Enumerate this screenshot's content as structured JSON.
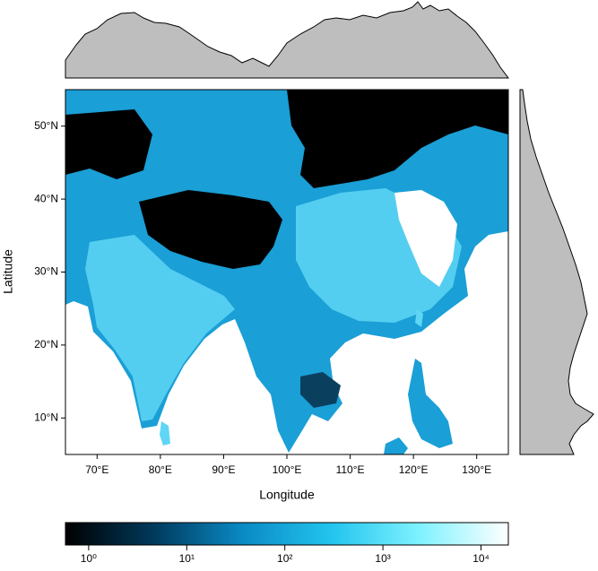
{
  "chart_data": {
    "type": "map",
    "x_label": "Longitude",
    "y_label": "Latitude",
    "xlim": [
      65,
      135
    ],
    "ylim": [
      5,
      55
    ],
    "xticks": [
      {
        "value": 70,
        "label": "70°E"
      },
      {
        "value": 80,
        "label": "80°E"
      },
      {
        "value": 90,
        "label": "90°E"
      },
      {
        "value": 100,
        "label": "100°E"
      },
      {
        "value": 110,
        "label": "110°E"
      },
      {
        "value": 120,
        "label": "120°E"
      },
      {
        "value": 130,
        "label": "130°E"
      }
    ],
    "yticks": [
      {
        "value": 10,
        "label": "10°N"
      },
      {
        "value": 20,
        "label": "20°N"
      },
      {
        "value": 30,
        "label": "30°N"
      },
      {
        "value": 40,
        "label": "40°N"
      },
      {
        "value": 50,
        "label": "50°N"
      }
    ],
    "colorbar": {
      "log_scale": true,
      "lim": [
        0.58,
        19000
      ],
      "colors": [
        "#000000",
        "#003a5c",
        "#0a8ac4",
        "#22c4ee",
        "#7ff2ff",
        "#ffffff"
      ],
      "ticks": [
        {
          "value": 1,
          "label": "10⁰"
        },
        {
          "value": 10,
          "label": "10¹"
        },
        {
          "value": 100,
          "label": "10²"
        },
        {
          "value": 1000,
          "label": "10³"
        },
        {
          "value": 10000,
          "label": "10⁴"
        }
      ]
    }
  }
}
